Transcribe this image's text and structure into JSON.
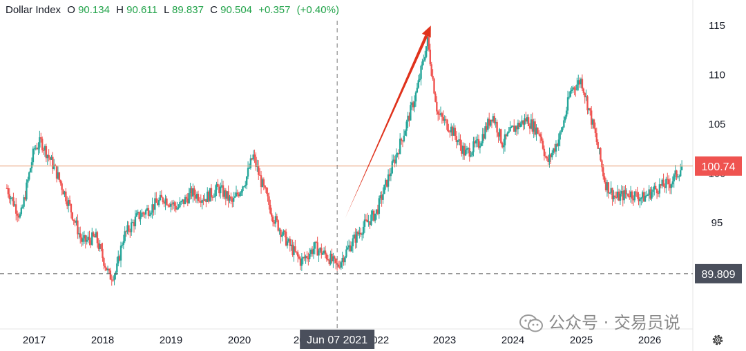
{
  "header": {
    "title": "Dollar Index",
    "open_label": "O",
    "open": "90.134",
    "high_label": "H",
    "high": "90.611",
    "low_label": "L",
    "low": "89.837",
    "close_label": "C",
    "close": "90.504",
    "change": "+0.357",
    "change_pct": "(+0.40%)"
  },
  "watermark": "公众号 · 交易员说",
  "icons": {
    "settings": "gear-icon",
    "watermark": "wechat-icon"
  },
  "colors": {
    "up": "#26a69a",
    "down": "#ef5350",
    "last_price_badge": "#ef5350",
    "crosshair_badge": "#4a4f5c",
    "arrow": "#e0321c",
    "price_line": "#e8a07a"
  },
  "chart_data": {
    "type": "candlestick",
    "title": "",
    "xlabel": "",
    "ylabel": "",
    "x_ticks": [
      "2017",
      "2018",
      "2019",
      "2020",
      "2021",
      "2022",
      "2023",
      "2024",
      "2025",
      "2026"
    ],
    "y_ticks": [
      95,
      100,
      105,
      110,
      115
    ],
    "ylim": [
      84.2,
      117.6
    ],
    "grid": false,
    "series": [
      {
        "x": [
          2016.6,
          2016.8,
          2016.9,
          2017.0,
          2017.1,
          2017.3,
          2017.5,
          2017.7,
          2017.9,
          2018.1,
          2018.2,
          2018.3,
          2018.5,
          2018.7,
          2018.9,
          2019.1,
          2019.3,
          2019.5,
          2019.7,
          2019.9,
          2020.1,
          2020.2,
          2020.3,
          2020.5,
          2020.7,
          2020.9,
          2021.1,
          2021.3,
          2021.43,
          2021.6,
          2021.8,
          2022.0,
          2022.2,
          2022.4,
          2022.6,
          2022.75,
          2022.9,
          2023.1,
          2023.3,
          2023.5,
          2023.7,
          2023.85,
          2024.0,
          2024.2,
          2024.4,
          2024.5,
          2024.7,
          2024.85,
          2025.0,
          2025.2,
          2025.35,
          2025.5,
          2025.7,
          2025.9,
          2026.1,
          2026.3,
          2026.48
        ],
        "values": [
          98.5,
          95.5,
          99.0,
          102.5,
          103.2,
          100.5,
          97.0,
          93.0,
          93.5,
          89.5,
          90.0,
          93.5,
          95.5,
          96.5,
          97.5,
          96.5,
          98.0,
          97.5,
          98.5,
          97.0,
          99.5,
          101.8,
          99.5,
          95.5,
          93.0,
          91.0,
          92.5,
          91.5,
          90.5,
          92.5,
          94.5,
          96.0,
          100.0,
          104.0,
          108.5,
          113.5,
          106.0,
          104.5,
          102.0,
          103.0,
          106.0,
          103.0,
          104.5,
          105.5,
          104.0,
          101.0,
          104.0,
          108.5,
          109.5,
          104.0,
          99.0,
          97.5,
          98.0,
          97.5,
          98.5,
          99.0,
          100.74
        ]
      }
    ],
    "annotations": {
      "last_price": "100.74",
      "crosshair_price": "89.809",
      "crosshair_date": "Jun 07 2021",
      "arrow": {
        "from": [
          2021.55,
          95.5
        ],
        "to": [
          2022.8,
          115.0
        ]
      }
    }
  }
}
